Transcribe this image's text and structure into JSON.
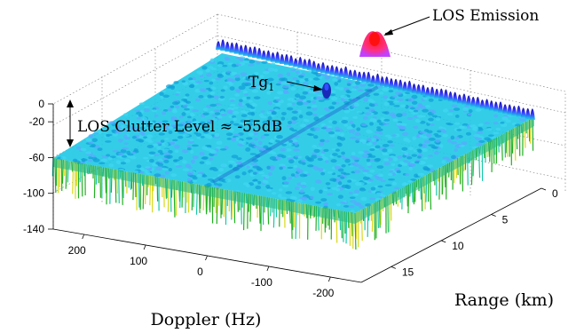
{
  "chart_data": {
    "type": "surface",
    "title": "",
    "xlabel": "Doppler (Hz)",
    "ylabel": "Range (km)",
    "zlabel": "",
    "x_ticks": [
      200,
      100,
      0,
      -100,
      -200
    ],
    "y_ticks": [
      0,
      5,
      10,
      15
    ],
    "z_ticks": [
      0,
      -20,
      -60,
      -100,
      -140
    ],
    "xlim": [
      250,
      -250
    ],
    "ylim": [
      0,
      18
    ],
    "zlim": [
      -140,
      0
    ],
    "grid": true,
    "colormap": "jet",
    "annotations": {
      "los_emission": "LOS Emission",
      "target_main": "Tg",
      "target_sub": "1",
      "clutter_level": "LOS Clutter Level ≈ -55dB"
    },
    "features": [
      {
        "name": "LOS Emission",
        "doppler_hz": 0,
        "range_km": 0,
        "level_db": 0
      },
      {
        "name": "Tg1",
        "doppler_hz": -60,
        "range_km": 2.5,
        "level_db": -28
      },
      {
        "name": "LOS Clutter Level",
        "doppler_hz": 0,
        "range_km": 0,
        "level_db": -55
      }
    ]
  },
  "colors": {
    "low": "#1aa11a",
    "mid": "#1ec8e6",
    "high": "#2a2aff",
    "peak": "#ff1a1a"
  }
}
